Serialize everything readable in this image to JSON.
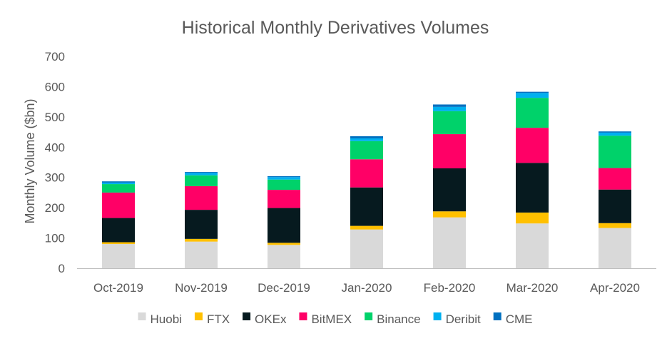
{
  "chart_data": {
    "type": "bar",
    "stacked": true,
    "title": "Historical Monthly Derivatives Volumes",
    "xlabel": "",
    "ylabel": "Monthly Volume ($bn)",
    "ylim": [
      0,
      700
    ],
    "yticks": [
      0,
      100,
      200,
      300,
      400,
      500,
      600,
      700
    ],
    "grid": false,
    "legend": "bottom",
    "categories": [
      "Oct-2019",
      "Nov-2019",
      "Dec-2019",
      "Jan-2020",
      "Feb-2020",
      "Mar-2020",
      "Apr-2020"
    ],
    "series": [
      {
        "name": "Huobi",
        "color": "#d9d9d9",
        "values": [
          80,
          88,
          77,
          128,
          168,
          148,
          133
        ]
      },
      {
        "name": "FTX",
        "color": "#ffc000",
        "values": [
          6,
          9,
          7,
          12,
          20,
          36,
          16
        ]
      },
      {
        "name": "OKEx",
        "color": "#061a1f",
        "values": [
          80,
          96,
          115,
          127,
          142,
          164,
          111
        ]
      },
      {
        "name": "BitMEX",
        "color": "#ff0066",
        "values": [
          84,
          78,
          60,
          93,
          113,
          116,
          71
        ]
      },
      {
        "name": "Binance",
        "color": "#00d26a",
        "values": [
          28,
          36,
          34,
          60,
          76,
          99,
          107
        ]
      },
      {
        "name": "Deribit",
        "color": "#00b0f0",
        "values": [
          5,
          8,
          8,
          9,
          14,
          16,
          10
        ]
      },
      {
        "name": "CME",
        "color": "#0070c0",
        "values": [
          4,
          3,
          3,
          7,
          8,
          4,
          4
        ]
      }
    ]
  }
}
